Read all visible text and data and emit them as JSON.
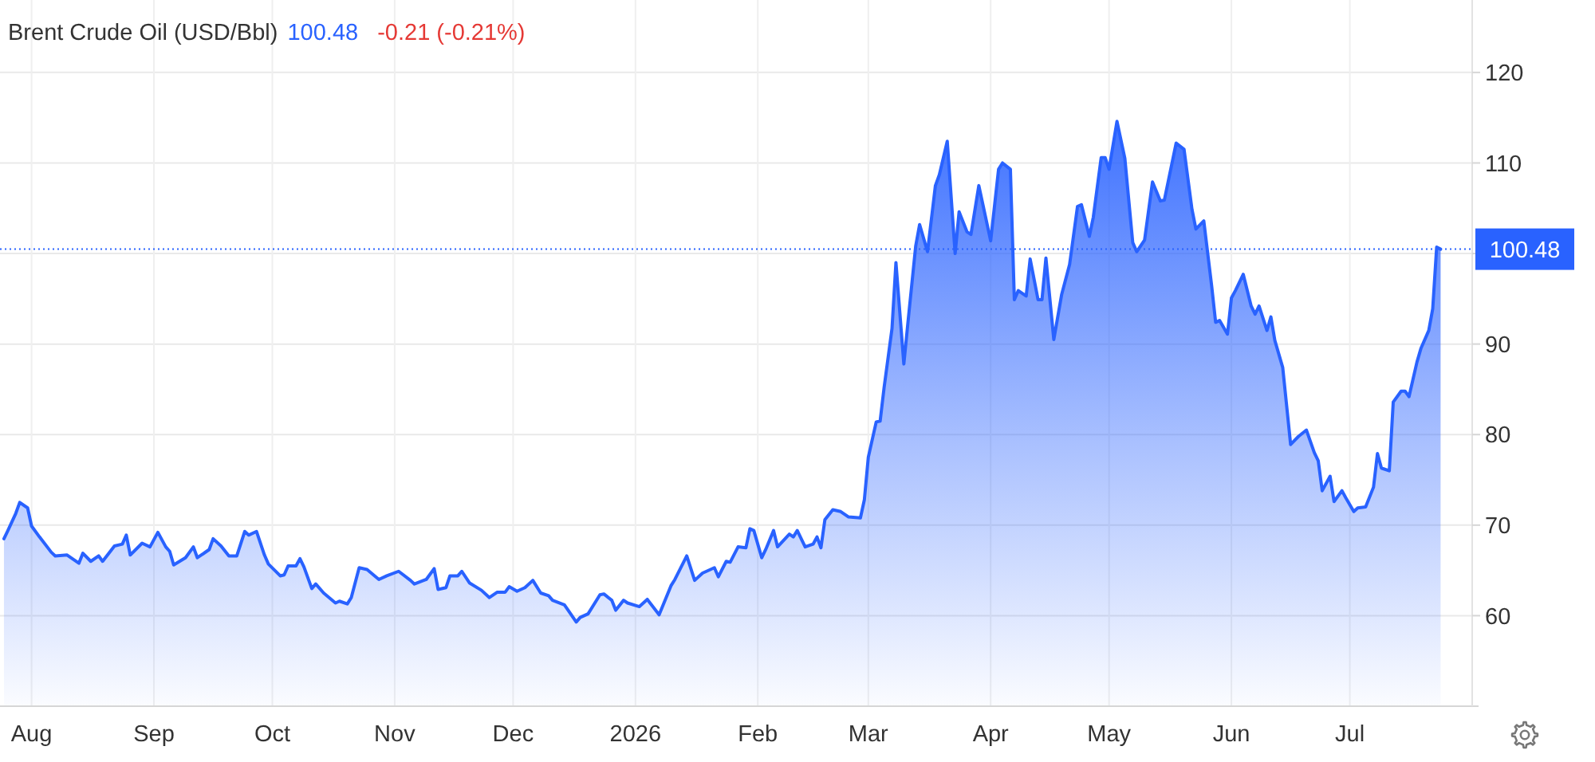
{
  "chart_data": {
    "type": "area",
    "title": "Brent Crude Oil (USD/Bbl)",
    "annotations": [
      "100.48",
      "-0.21 (-0.21%)"
    ],
    "x": [
      "2025-07-25",
      "2025-07-26",
      "2025-07-28",
      "2025-07-29",
      "2025-07-31",
      "2025-08-01",
      "2025-08-03",
      "2025-08-06",
      "2025-08-07",
      "2025-08-10",
      "2025-08-13",
      "2025-08-14",
      "2025-08-16",
      "2025-08-18",
      "2025-08-19",
      "2025-08-22",
      "2025-08-24",
      "2025-08-25",
      "2025-08-26",
      "2025-08-29",
      "2025-08-31",
      "2025-09-02",
      "2025-09-04",
      "2025-09-05",
      "2025-09-06",
      "2025-09-09",
      "2025-09-11",
      "2025-09-12",
      "2025-09-15",
      "2025-09-16",
      "2025-09-18",
      "2025-09-20",
      "2025-09-22",
      "2025-09-24",
      "2025-09-25",
      "2025-09-27",
      "2025-09-29",
      "2025-09-30",
      "2025-10-03",
      "2025-10-04",
      "2025-10-05",
      "2025-10-07",
      "2025-10-08",
      "2025-10-09",
      "2025-10-11",
      "2025-10-12",
      "2025-10-14",
      "2025-10-17",
      "2025-10-18",
      "2025-10-20",
      "2025-10-21",
      "2025-10-23",
      "2025-10-25",
      "2025-10-28",
      "2025-10-30",
      "2025-11-02",
      "2025-11-05",
      "2025-11-06",
      "2025-11-09",
      "2025-11-11",
      "2025-11-12",
      "2025-11-14",
      "2025-11-15",
      "2025-11-17",
      "2025-11-18",
      "2025-11-20",
      "2025-11-23",
      "2025-11-25",
      "2025-11-27",
      "2025-11-29",
      "2025-11-30",
      "2025-12-02",
      "2025-12-04",
      "2025-12-06",
      "2025-12-08",
      "2025-12-10",
      "2025-12-11",
      "2025-12-14",
      "2025-12-17",
      "2025-12-18",
      "2025-12-20",
      "2025-12-23",
      "2025-12-24",
      "2025-12-26",
      "2025-12-27",
      "2025-12-29",
      "2025-12-30",
      "2026-01-02",
      "2026-01-04",
      "2026-01-07",
      "2026-01-10",
      "2026-01-11",
      "2026-01-14",
      "2026-01-16",
      "2026-01-18",
      "2026-01-21",
      "2026-01-22",
      "2026-01-24",
      "2026-01-25",
      "2026-01-27",
      "2026-01-29",
      "2026-01-30",
      "2026-01-31",
      "2026-02-02",
      "2026-02-03",
      "2026-02-05",
      "2026-02-06",
      "2026-02-09",
      "2026-02-10",
      "2026-02-11",
      "2026-02-13",
      "2026-02-15",
      "2026-02-16",
      "2026-02-17",
      "2026-02-18",
      "2026-02-20",
      "2026-02-22",
      "2026-02-24",
      "2026-02-27",
      "2026-02-28",
      "2026-03-01",
      "2026-03-03",
      "2026-03-04",
      "2026-03-05",
      "2026-03-07",
      "2026-03-08",
      "2026-03-10",
      "2026-03-11",
      "2026-03-13",
      "2026-03-14",
      "2026-03-16",
      "2026-03-18",
      "2026-03-19",
      "2026-03-21",
      "2026-03-23",
      "2026-03-24",
      "2026-03-26",
      "2026-03-27",
      "2026-03-29",
      "2026-04-01",
      "2026-04-03",
      "2026-04-04",
      "2026-04-06",
      "2026-04-07",
      "2026-04-08",
      "2026-04-10",
      "2026-04-11",
      "2026-04-13",
      "2026-04-14",
      "2026-04-15",
      "2026-04-17",
      "2026-04-19",
      "2026-04-21",
      "2026-04-23",
      "2026-04-24",
      "2026-04-26",
      "2026-04-27",
      "2026-04-29",
      "2026-04-30",
      "2026-05-01",
      "2026-05-03",
      "2026-05-05",
      "2026-05-07",
      "2026-05-08",
      "2026-05-10",
      "2026-05-12",
      "2026-05-14",
      "2026-05-15",
      "2026-05-18",
      "2026-05-20",
      "2026-05-22",
      "2026-05-23",
      "2026-05-25",
      "2026-05-27",
      "2026-05-28",
      "2026-05-29",
      "2026-05-31",
      "2026-06-01",
      "2026-06-02",
      "2026-06-04",
      "2026-06-06",
      "2026-06-07",
      "2026-06-08",
      "2026-06-10",
      "2026-06-11",
      "2026-06-12",
      "2026-06-14",
      "2026-06-16",
      "2026-06-18",
      "2026-06-20",
      "2026-06-22",
      "2026-06-23",
      "2026-06-24",
      "2026-06-26",
      "2026-06-27",
      "2026-06-29",
      "2026-06-30",
      "2026-07-02",
      "2026-07-03",
      "2026-07-05",
      "2026-07-07",
      "2026-07-08",
      "2026-07-09",
      "2026-07-11",
      "2026-07-12",
      "2026-07-14",
      "2026-07-15",
      "2026-07-16",
      "2026-07-18",
      "2026-07-19",
      "2026-07-21",
      "2026-07-22",
      "2026-07-23",
      "2026-07-24"
    ],
    "series": [
      {
        "color": "#2962ff",
        "values": [
          68.5,
          69.4,
          71.3,
          72.5,
          71.9,
          69.9,
          68.7,
          67.0,
          66.6,
          66.7,
          65.8,
          66.9,
          66.0,
          66.6,
          66.0,
          67.7,
          67.9,
          68.9,
          66.7,
          68.0,
          67.6,
          69.2,
          67.6,
          67.1,
          65.6,
          66.4,
          67.6,
          66.4,
          67.3,
          68.5,
          67.7,
          66.6,
          66.6,
          69.3,
          68.9,
          69.3,
          66.7,
          65.7,
          64.4,
          64.5,
          65.5,
          65.5,
          66.3,
          65.4,
          63.0,
          63.5,
          62.5,
          61.4,
          61.6,
          61.3,
          62.0,
          65.3,
          65.1,
          64.0,
          64.4,
          64.9,
          63.9,
          63.5,
          64.0,
          65.2,
          62.9,
          63.1,
          64.4,
          64.4,
          64.9,
          63.6,
          62.8,
          62.0,
          62.6,
          62.6,
          63.2,
          62.7,
          63.1,
          63.9,
          62.5,
          62.2,
          61.7,
          61.2,
          59.3,
          59.8,
          60.2,
          62.3,
          62.4,
          61.7,
          60.6,
          61.7,
          61.4,
          61.0,
          61.8,
          60.1,
          63.3,
          64.0,
          66.6,
          63.9,
          64.7,
          65.3,
          64.3,
          66.0,
          65.9,
          67.6,
          67.5,
          69.6,
          69.4,
          66.4,
          67.3,
          69.4,
          67.6,
          69.0,
          68.7,
          69.4,
          67.6,
          67.9,
          68.7,
          67.5,
          70.6,
          71.7,
          71.5,
          70.9,
          70.8,
          72.8,
          77.5,
          81.4,
          81.5,
          85.2,
          91.7,
          99.0,
          87.8,
          92.2,
          100.8,
          103.2,
          100.2,
          107.5,
          108.7,
          112.4,
          100.0,
          104.6,
          102.4,
          102.1,
          107.5,
          101.4,
          109.3,
          110.0,
          109.3,
          94.9,
          95.9,
          95.3,
          99.4,
          94.9,
          94.9,
          99.5,
          90.5,
          95.5,
          98.8,
          105.2,
          105.4,
          101.9,
          104.0,
          110.6,
          110.6,
          109.3,
          114.6,
          110.5,
          101.2,
          100.2,
          101.5,
          107.9,
          105.8,
          105.9,
          112.2,
          111.5,
          104.9,
          102.7,
          103.6,
          96.4,
          92.4,
          92.6,
          91.1,
          95.1,
          95.9,
          97.7,
          94.2,
          93.3,
          94.2,
          91.5,
          93.0,
          90.4,
          87.4,
          78.9,
          79.8,
          80.5,
          78.0,
          77.1,
          73.8,
          75.4,
          72.6,
          73.8,
          73.0,
          71.5,
          71.9,
          72.0,
          74.2,
          77.9,
          76.3,
          76.0,
          83.6,
          84.8,
          84.8,
          84.2,
          88.0,
          89.5,
          91.5,
          93.9,
          100.7,
          100.48
        ]
      }
    ],
    "xlim": [
      "2025-07-24",
      "2026-08-01"
    ],
    "xticks": [
      {
        "value": "2025-08-01",
        "label": "Aug"
      },
      {
        "value": "2025-09-01",
        "label": "Sep"
      },
      {
        "value": "2025-10-01",
        "label": "Oct"
      },
      {
        "value": "2025-11-01",
        "label": "Nov"
      },
      {
        "value": "2025-12-01",
        "label": "Dec"
      },
      {
        "value": "2026-01-01",
        "label": "2026"
      },
      {
        "value": "2026-02-01",
        "label": "Feb"
      },
      {
        "value": "2026-03-01",
        "label": "Mar"
      },
      {
        "value": "2026-04-01",
        "label": "Apr"
      },
      {
        "value": "2026-05-01",
        "label": "May"
      },
      {
        "value": "2026-06-01",
        "label": "Jun"
      },
      {
        "value": "2026-07-01",
        "label": "Jul"
      }
    ],
    "ylim": [
      50,
      128
    ],
    "yticks": [
      60,
      70,
      80,
      90,
      {
        "value": 100,
        "label": null
      },
      110,
      120
    ],
    "grid": true,
    "ref_lines": [
      {
        "axis": "y",
        "value": 100.48,
        "label": "100.48",
        "color": "#2962ff",
        "line_style": "dotted"
      }
    ]
  }
}
